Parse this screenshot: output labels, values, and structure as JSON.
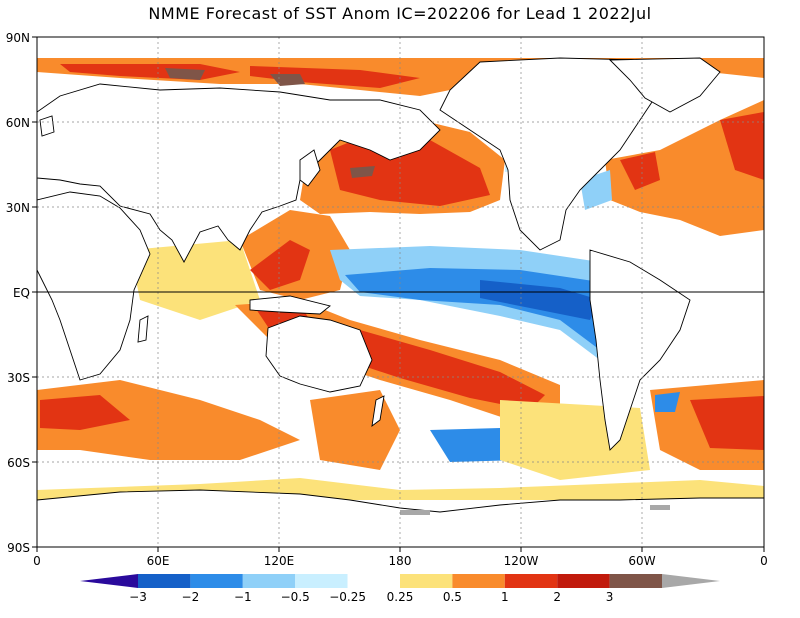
{
  "title": "NMME Forecast of SST Anom IC=202206 for Lead 1 2022Jul",
  "lat_labels": [
    "90N",
    "60N",
    "30N",
    "EQ",
    "30S",
    "60S",
    "90S"
  ],
  "lon_labels": [
    "0",
    "60E",
    "120E",
    "180",
    "120W",
    "60W",
    "0"
  ],
  "colorbar": {
    "labels": [
      "-3",
      "-2",
      "-1",
      "-0.5",
      "-0.25",
      "0.25",
      "0.5",
      "1",
      "2",
      "3"
    ],
    "colors": [
      "#2a0a9c",
      "#1560c8",
      "#2d8ce8",
      "#8fd0f8",
      "#c9efff",
      "#ffffff",
      "#fce27a",
      "#f98b2c",
      "#e23413",
      "#c11a0c",
      "#7f5548",
      "#a8a8a8"
    ]
  },
  "palette": {
    "land": "#ffffff",
    "coast": "#000000",
    "ice": "#a8a8a8"
  }
}
